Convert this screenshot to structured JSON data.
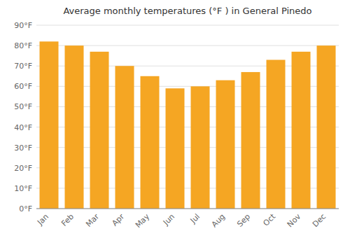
{
  "chart_data": {
    "type": "bar",
    "title": "Average monthly temperatures (°F ) in General Pinedo",
    "categories": [
      "Jan",
      "Feb",
      "Mar",
      "Apr",
      "May",
      "Jun",
      "Jul",
      "Aug",
      "Sep",
      "Oct",
      "Nov",
      "Dec"
    ],
    "values": [
      82,
      80,
      77,
      70,
      65,
      59,
      60,
      63,
      67,
      73,
      77,
      80
    ],
    "color": "#F5A623",
    "ylim": [
      0,
      90
    ],
    "yticks": [
      {
        "value": 0,
        "label": "0°F"
      },
      {
        "value": 10,
        "label": "10°F"
      },
      {
        "value": 20,
        "label": "20°F"
      },
      {
        "value": 30,
        "label": "30°F"
      },
      {
        "value": 40,
        "label": "40°F"
      },
      {
        "value": 50,
        "label": "50°F"
      },
      {
        "value": 60,
        "label": "60°F"
      },
      {
        "value": 70,
        "label": "70°F"
      },
      {
        "value": 80,
        "label": "80°F"
      },
      {
        "value": 90,
        "label": "90°F"
      }
    ],
    "grid": true
  }
}
